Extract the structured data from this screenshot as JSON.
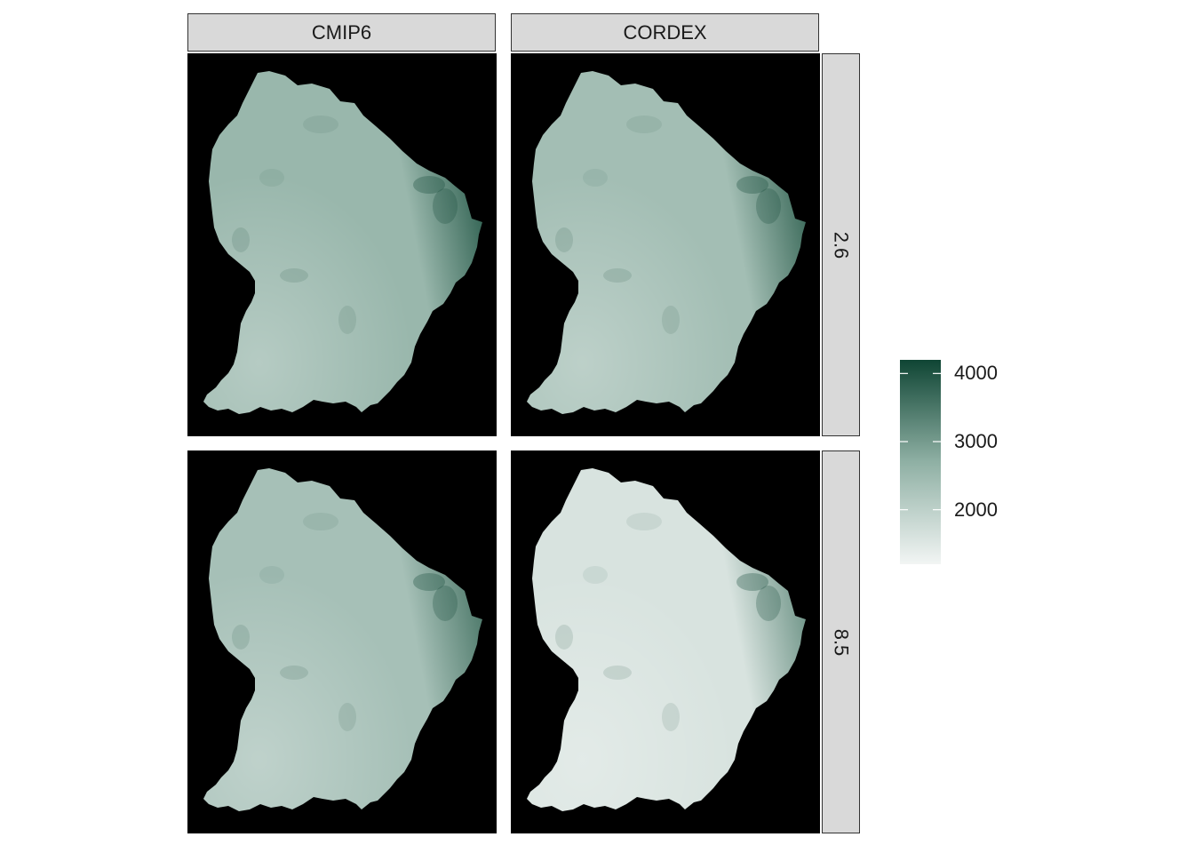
{
  "columns": [
    {
      "key": "cmip6",
      "label": "CMIP6"
    },
    {
      "key": "cordex",
      "label": "CORDEX"
    }
  ],
  "rows": [
    {
      "key": "r26",
      "label": "2.6"
    },
    {
      "key": "r85",
      "label": "8.5"
    }
  ],
  "legend": {
    "min": 1200,
    "max": 4200,
    "breaks": [
      "4000",
      "3000",
      "2000"
    ],
    "break_values": [
      4000,
      3000,
      2000
    ],
    "low_color": "#f2f5f4",
    "high_color": "#0f4534"
  },
  "colors": {
    "background": "#000000",
    "strip": "#d9d9d9"
  },
  "panels": [
    {
      "row": "r26",
      "col": "cmip6",
      "base_value": 2550,
      "east_value": 3800
    },
    {
      "row": "r26",
      "col": "cordex",
      "base_value": 2400,
      "east_value": 3700
    },
    {
      "row": "r85",
      "col": "cmip6",
      "base_value": 2350,
      "east_value": 3500
    },
    {
      "row": "r85",
      "col": "cordex",
      "base_value": 1600,
      "east_value": 3100
    }
  ]
}
